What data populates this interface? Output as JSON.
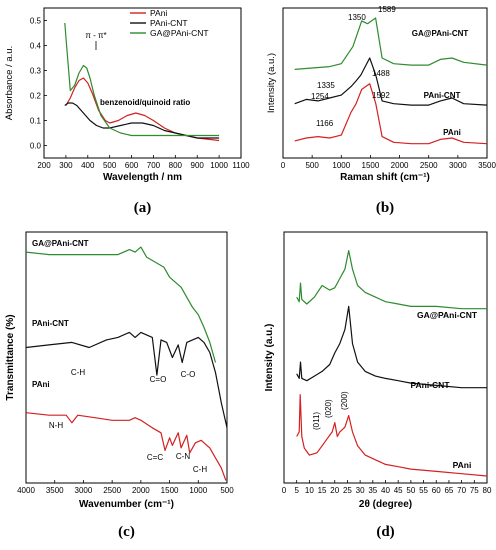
{
  "chart_data": [
    {
      "id": "a",
      "type": "line",
      "panel_label": "(a)",
      "xlabel": "Wavelength / nm",
      "ylabel": "Absorbance / a.u.",
      "xlim": [
        200,
        1100
      ],
      "ylim": [
        -0.05,
        0.55
      ],
      "xticks": [
        200,
        300,
        400,
        500,
        600,
        700,
        800,
        900,
        1000,
        1100
      ],
      "yticks": [
        0.0,
        0.1,
        0.2,
        0.3,
        0.4,
        0.5
      ],
      "ytick_labels": [
        "0.0",
        "0.1",
        "0.2",
        "0.3",
        "0.4",
        "0.5"
      ],
      "legend": "top-right",
      "annotations": [
        "π - π*",
        "benzenoid/quinoid ratio"
      ],
      "series": [
        {
          "name": "PAni",
          "color": "#d42020",
          "x": [
            300,
            320,
            340,
            360,
            380,
            400,
            420,
            450,
            480,
            500,
            540,
            580,
            620,
            660,
            700,
            750,
            800,
            850,
            900,
            1000
          ],
          "y": [
            0.16,
            0.19,
            0.23,
            0.26,
            0.27,
            0.25,
            0.21,
            0.14,
            0.1,
            0.09,
            0.1,
            0.12,
            0.13,
            0.12,
            0.1,
            0.07,
            0.05,
            0.04,
            0.03,
            0.02
          ]
        },
        {
          "name": "PAni-CNT",
          "color": "#111111",
          "x": [
            295,
            310,
            330,
            350,
            370,
            390,
            410,
            440,
            470,
            500,
            550,
            600,
            650,
            700,
            750,
            800,
            900,
            1000
          ],
          "y": [
            0.16,
            0.17,
            0.17,
            0.16,
            0.14,
            0.12,
            0.1,
            0.08,
            0.07,
            0.07,
            0.08,
            0.09,
            0.09,
            0.08,
            0.06,
            0.05,
            0.03,
            0.03
          ]
        },
        {
          "name": "GA@PAni-CNT",
          "color": "#2e8b2e",
          "x": [
            295,
            305,
            320,
            340,
            360,
            380,
            395,
            410,
            430,
            460,
            500,
            550,
            600,
            650,
            700,
            800,
            900,
            1000
          ],
          "y": [
            0.49,
            0.38,
            0.22,
            0.24,
            0.29,
            0.32,
            0.31,
            0.27,
            0.2,
            0.12,
            0.07,
            0.05,
            0.04,
            0.04,
            0.04,
            0.04,
            0.04,
            0.04
          ]
        }
      ]
    },
    {
      "id": "b",
      "type": "line",
      "panel_label": "(b)",
      "xlabel": "Raman shift (cm⁻¹)",
      "ylabel": "Intensity (a.u.)",
      "xlim": [
        0,
        3500
      ],
      "xticks": [
        0,
        500,
        1000,
        1500,
        2000,
        2500,
        3000,
        3500
      ],
      "annotations": [
        "1350",
        "1589",
        "1488",
        "1335",
        "1254",
        "1592",
        "1166"
      ],
      "series": [
        {
          "name": "GA@PAni-CNT",
          "color": "#2e8b2e",
          "x": [
            200,
            500,
            800,
            1000,
            1200,
            1350,
            1450,
            1589,
            1700,
            1900,
            2200,
            2500,
            2700,
            2900,
            3100,
            3500
          ],
          "y": [
            0.62,
            0.63,
            0.64,
            0.66,
            0.78,
            0.96,
            0.94,
            0.98,
            0.7,
            0.66,
            0.65,
            0.65,
            0.69,
            0.7,
            0.67,
            0.65
          ]
        },
        {
          "name": "PAni-CNT",
          "color": "#111111",
          "x": [
            200,
            400,
            600,
            800,
            1000,
            1166,
            1254,
            1335,
            1488,
            1592,
            1700,
            1900,
            2200,
            2500,
            2700,
            2900,
            3100,
            3500
          ],
          "y": [
            0.38,
            0.41,
            0.4,
            0.42,
            0.44,
            0.5,
            0.54,
            0.58,
            0.7,
            0.58,
            0.4,
            0.38,
            0.37,
            0.37,
            0.4,
            0.42,
            0.38,
            0.37
          ]
        },
        {
          "name": "PAni",
          "color": "#d42020",
          "x": [
            200,
            400,
            600,
            800,
            1000,
            1166,
            1254,
            1350,
            1488,
            1592,
            1700,
            1900,
            2200,
            2500,
            2700,
            2900,
            3100,
            3500
          ],
          "y": [
            0.12,
            0.14,
            0.15,
            0.14,
            0.16,
            0.32,
            0.38,
            0.48,
            0.52,
            0.38,
            0.15,
            0.11,
            0.1,
            0.1,
            0.13,
            0.14,
            0.11,
            0.1
          ]
        }
      ]
    },
    {
      "id": "c",
      "type": "line",
      "panel_label": "(c)",
      "xlabel": "Wavenumber (cm⁻¹)",
      "ylabel": "Transmittance (%)",
      "xlim": [
        4000,
        500
      ],
      "xticks": [
        4000,
        3500,
        3000,
        2500,
        2000,
        1500,
        1000,
        500
      ],
      "annotations": [
        "C-H",
        "C=O",
        "C-O",
        "N-H",
        "C=C",
        "C-N",
        "C-H"
      ],
      "series": [
        {
          "name": "GA@PAni-CNT",
          "color": "#2e8b2e",
          "x": [
            4000,
            3600,
            3200,
            2800,
            2400,
            2200,
            2100,
            2000,
            1900,
            1750,
            1600,
            1500,
            1400,
            1300,
            1200,
            1100,
            1000,
            900,
            800,
            700
          ],
          "y": [
            0.92,
            0.91,
            0.91,
            0.91,
            0.91,
            0.93,
            0.92,
            0.94,
            0.9,
            0.88,
            0.86,
            0.82,
            0.8,
            0.78,
            0.74,
            0.7,
            0.67,
            0.62,
            0.56,
            0.48
          ]
        },
        {
          "name": "PAni-CNT",
          "color": "#111111",
          "x": [
            4000,
            3600,
            3200,
            2900,
            2600,
            2400,
            2200,
            2100,
            2000,
            1900,
            1800,
            1720,
            1650,
            1550,
            1450,
            1350,
            1280,
            1200,
            1100,
            1000,
            900,
            800,
            700,
            600,
            500
          ],
          "y": [
            0.54,
            0.55,
            0.56,
            0.54,
            0.57,
            0.58,
            0.6,
            0.58,
            0.6,
            0.59,
            0.58,
            0.43,
            0.57,
            0.56,
            0.5,
            0.55,
            0.48,
            0.56,
            0.57,
            0.58,
            0.56,
            0.52,
            0.44,
            0.32,
            0.22
          ]
        },
        {
          "name": "PAni",
          "color": "#d42020",
          "x": [
            4000,
            3600,
            3300,
            3200,
            3100,
            2800,
            2500,
            2200,
            2100,
            2000,
            1800,
            1650,
            1580,
            1500,
            1450,
            1350,
            1300,
            1200,
            1150,
            1050,
            950,
            850,
            800,
            700,
            600,
            520
          ],
          "y": [
            0.28,
            0.27,
            0.27,
            0.24,
            0.27,
            0.26,
            0.25,
            0.25,
            0.26,
            0.25,
            0.22,
            0.2,
            0.13,
            0.18,
            0.15,
            0.2,
            0.14,
            0.19,
            0.12,
            0.16,
            0.17,
            0.15,
            0.14,
            0.1,
            0.06,
            0.01
          ]
        }
      ]
    },
    {
      "id": "d",
      "type": "line",
      "panel_label": "(d)",
      "xlabel": "2θ (degree)",
      "ylabel": "Intensity (a.u.)",
      "xlim": [
        0,
        80
      ],
      "xticks": [
        0,
        5,
        10,
        15,
        20,
        25,
        30,
        35,
        40,
        45,
        50,
        55,
        60,
        65,
        70,
        75,
        80
      ],
      "annotations": [
        "(011)",
        "(020)",
        "(200)"
      ],
      "series": [
        {
          "name": "GA@PAni-CNT",
          "color": "#2e8b2e",
          "x": [
            5,
            6,
            6.5,
            7,
            9,
            12,
            15,
            18,
            20,
            22,
            24,
            25.5,
            27,
            29,
            32,
            36,
            40,
            45,
            50,
            60,
            70,
            80
          ],
          "y": [
            0.8,
            0.78,
            0.86,
            0.79,
            0.77,
            0.8,
            0.85,
            0.83,
            0.84,
            0.88,
            0.92,
            1.0,
            0.92,
            0.85,
            0.82,
            0.8,
            0.78,
            0.77,
            0.76,
            0.76,
            0.75,
            0.75
          ]
        },
        {
          "name": "PAni-CNT",
          "color": "#111111",
          "x": [
            5,
            6,
            6.5,
            7,
            9,
            12,
            15,
            18,
            20,
            22,
            24,
            25.5,
            27,
            29,
            32,
            36,
            40,
            45,
            50,
            60,
            70,
            80
          ],
          "y": [
            0.47,
            0.45,
            0.52,
            0.45,
            0.44,
            0.46,
            0.48,
            0.51,
            0.56,
            0.6,
            0.66,
            0.76,
            0.6,
            0.52,
            0.48,
            0.46,
            0.45,
            0.44,
            0.43,
            0.42,
            0.41,
            0.41
          ]
        },
        {
          "name": "PAni",
          "color": "#d42020",
          "x": [
            5,
            6,
            6.4,
            7,
            8,
            10,
            13,
            15,
            17,
            19,
            20,
            21,
            22,
            24,
            25.5,
            27,
            29,
            32,
            36,
            40,
            45,
            50,
            60,
            70,
            80
          ],
          "y": [
            0.2,
            0.22,
            0.38,
            0.2,
            0.15,
            0.12,
            0.13,
            0.16,
            0.19,
            0.22,
            0.26,
            0.2,
            0.22,
            0.24,
            0.29,
            0.22,
            0.16,
            0.12,
            0.1,
            0.08,
            0.07,
            0.06,
            0.05,
            0.04,
            0.03
          ]
        }
      ]
    }
  ],
  "labels": {
    "a_pipi": "π - π*",
    "a_ratio": "benzenoid/quinoid ratio",
    "b_1350": "1350",
    "b_1589": "1589",
    "b_1488": "1488",
    "b_1335": "1335",
    "b_1254": "1254",
    "b_1592": "1592",
    "b_1166": "1166",
    "c_ch1": "C-H",
    "c_co1": "C=O",
    "c_co2": "C-O",
    "c_nh": "N-H",
    "c_cc": "C=C",
    "c_cn": "C-N",
    "c_ch2": "C-H",
    "d_011": "(011)",
    "d_020": "(020)",
    "d_200": "(200)"
  }
}
